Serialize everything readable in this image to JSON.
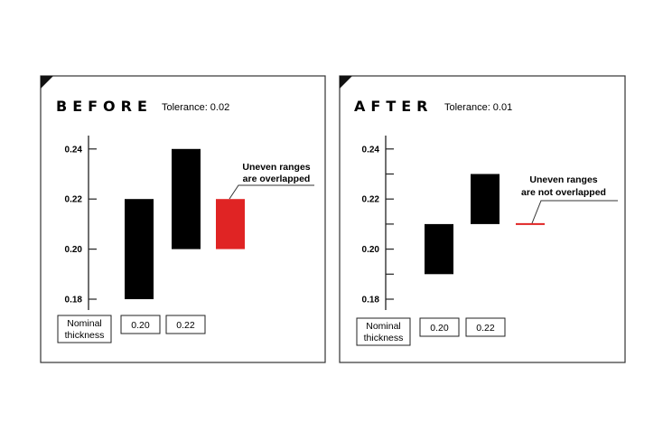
{
  "chart_data": [
    {
      "type": "bar",
      "title": "BEFORE",
      "subtitle": "Tolerance: 0.02",
      "ylim": [
        0.175,
        0.245
      ],
      "yticks": [
        0.18,
        0.2,
        0.22,
        0.24
      ],
      "ytick_labels": [
        "0.18",
        "0.20",
        "0.22",
        "0.24"
      ],
      "minor_ticks": [],
      "bars": [
        {
          "low": 0.18,
          "high": 0.22,
          "color": "#000000"
        },
        {
          "low": 0.2,
          "high": 0.24,
          "color": "#000000"
        },
        {
          "low": 0.2,
          "high": 0.22,
          "color": "#e02424"
        }
      ],
      "annotation_lines": [
        "Uneven ranges",
        "are overlapped"
      ],
      "category_labels": [
        {
          "lines": [
            "Nominal",
            "thickness"
          ]
        },
        {
          "lines": [
            "0.20"
          ]
        },
        {
          "lines": [
            "0.22"
          ]
        }
      ]
    },
    {
      "type": "bar",
      "title": "AFTER",
      "subtitle": "Tolerance: 0.01",
      "ylim": [
        0.175,
        0.245
      ],
      "yticks": [
        0.18,
        0.2,
        0.22,
        0.24
      ],
      "ytick_labels": [
        "0.18",
        "0.20",
        "0.22",
        "0.24"
      ],
      "minor_ticks": [
        0.19,
        0.21,
        0.23
      ],
      "bars": [
        {
          "low": 0.19,
          "high": 0.21,
          "color": "#000000"
        },
        {
          "low": 0.21,
          "high": 0.23,
          "color": "#000000"
        },
        {
          "low": 0.21,
          "high": 0.21,
          "color": "#e02424"
        }
      ],
      "annotation_lines": [
        "Uneven ranges",
        "are not overlapped"
      ],
      "category_labels": [
        {
          "lines": [
            "Nominal",
            "thickness"
          ]
        },
        {
          "lines": [
            "0.20"
          ]
        },
        {
          "lines": [
            "0.22"
          ]
        }
      ]
    }
  ]
}
